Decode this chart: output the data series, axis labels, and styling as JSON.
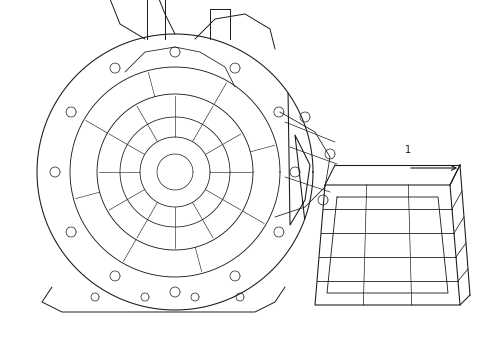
{
  "background_color": "#ffffff",
  "line_color": "#1a1a1a",
  "line_width": 0.7,
  "label_1": "1",
  "figsize": [
    4.89,
    3.6
  ],
  "dpi": 100
}
